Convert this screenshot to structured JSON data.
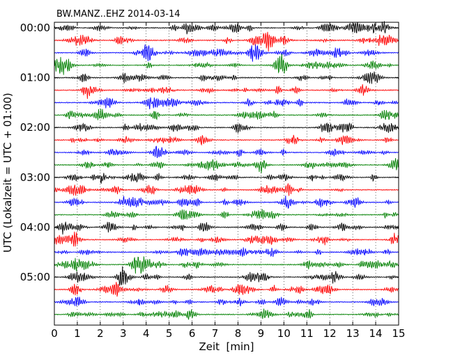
{
  "chart_data": {
    "type": "line",
    "title": "BW.MANZ..EHZ 2014-03-14",
    "xlabel": "Zeit  [min]",
    "ylabel": "UTC (Lokalzeit = UTC + 01:00)",
    "xlim": [
      0,
      15
    ],
    "x_ticks": [
      "0",
      "1",
      "2",
      "3",
      "4",
      "5",
      "6",
      "7",
      "8",
      "9",
      "10",
      "11",
      "12",
      "13",
      "14",
      "15"
    ],
    "y_tick_labels": [
      "00:00",
      "01:00",
      "02:00",
      "03:00",
      "04:00",
      "05:00"
    ],
    "grid": "vertical dotted lines at each minute",
    "trace_count": 24,
    "trace_interval_minutes": 15,
    "trace_colors": [
      "#000000",
      "#ff0000",
      "#0000ff",
      "#008000"
    ]
  }
}
